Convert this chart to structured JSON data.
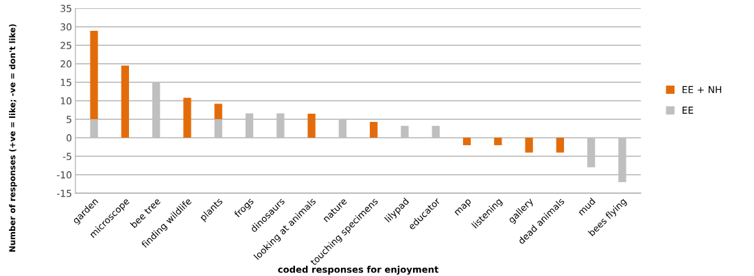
{
  "chart_data": {
    "type": "bar",
    "stacked": true,
    "xlabel": "coded responses for enjoyment",
    "ylabel": "Number of responses (+ve = like; -ve = don't like)",
    "categories": [
      "garden",
      "microscope",
      "bee tree",
      "finding wildlife",
      "plants",
      "frogs",
      "dinosaurs",
      "looking at animals",
      "nature",
      "touching specimens",
      "lilypad",
      "educator",
      "map",
      "listening",
      "gallery",
      "dead animals",
      "mud",
      "bees flying"
    ],
    "series": [
      {
        "name": "EE",
        "color": "#bfbfbf",
        "values": [
          5,
          null,
          15,
          null,
          5,
          6.6,
          6.6,
          null,
          5,
          null,
          3.2,
          3.2,
          null,
          null,
          null,
          null,
          -8,
          -12
        ]
      },
      {
        "name": "EE + NH",
        "color": "#e36c0a",
        "values": [
          23.9,
          19.5,
          null,
          10.8,
          4.2,
          null,
          null,
          6.5,
          null,
          4.3,
          null,
          null,
          -2,
          -2,
          -4,
          -4,
          null,
          null
        ]
      }
    ],
    "ylim": [
      -15,
      35
    ],
    "yticks": [
      -15,
      -10,
      -5,
      0,
      5,
      10,
      15,
      20,
      25,
      30,
      35
    ],
    "grid": "y",
    "legend": "right"
  }
}
